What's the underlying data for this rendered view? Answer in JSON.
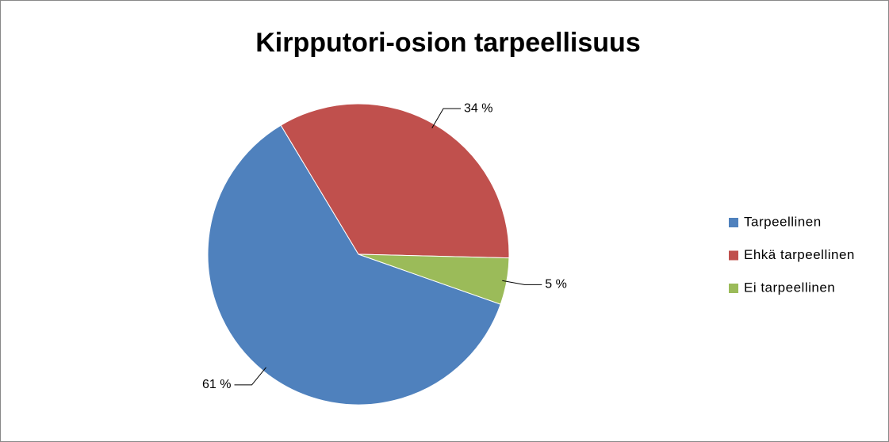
{
  "chart_data": {
    "type": "pie",
    "title": "Kirpputori-osion tarpeellisuus",
    "categories": [
      "Tarpeellinen",
      "Ehkä tarpeellinen",
      "Ei tarpeellinen"
    ],
    "values": [
      61,
      34,
      5
    ],
    "value_labels": [
      "61 %",
      "34 %",
      "5 %"
    ],
    "colors": [
      "#4f81bd",
      "#c0504d",
      "#9bbb59"
    ],
    "legend": "right"
  }
}
